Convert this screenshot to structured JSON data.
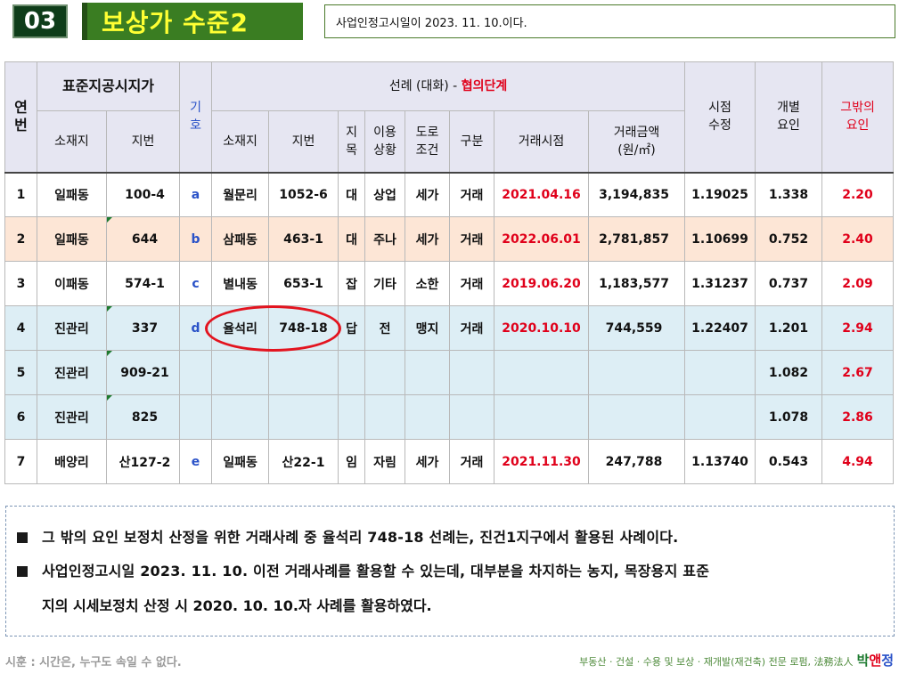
{
  "header": {
    "number": "03",
    "title": "보상가 수준2",
    "note": "사업인정고시일이 2023. 11. 10.이다."
  },
  "table": {
    "headers": {
      "no": "연번",
      "std_group": "표준지공시지가",
      "std_loc": "소재지",
      "std_lot": "지번",
      "symbol": "기호",
      "case_group_prefix": "선례 (대화) - ",
      "case_group_highlight": "협의단계",
      "case_loc": "소재지",
      "case_lot": "지번",
      "case_jimok": "지목",
      "case_use": "이용상황",
      "case_road": "도로조건",
      "case_type": "구분",
      "case_date": "거래시점",
      "case_amount": "거래금액(원/㎡)",
      "time_adj": "시점수정",
      "indiv": "개별요인",
      "other": "그밖의요인"
    },
    "rows": [
      {
        "no": "1",
        "std_loc": "일패동",
        "std_lot": "100-4",
        "symbol": "a",
        "case_loc": "월문리",
        "case_lot": "1052-6",
        "jimok": "대",
        "use": "상업",
        "road": "세가",
        "type": "거래",
        "date": "2021.04.16",
        "amount": "3,194,835",
        "time_adj": "1.19025",
        "indiv": "1.338",
        "other": "2.20"
      },
      {
        "no": "2",
        "std_loc": "일패동",
        "std_lot": "644",
        "symbol": "b",
        "case_loc": "삼패동",
        "case_lot": "463-1",
        "jimok": "대",
        "use": "주나",
        "road": "세가",
        "type": "거래",
        "date": "2022.06.01",
        "amount": "2,781,857",
        "time_adj": "1.10699",
        "indiv": "0.752",
        "other": "2.40"
      },
      {
        "no": "3",
        "std_loc": "이패동",
        "std_lot": "574-1",
        "symbol": "c",
        "case_loc": "별내동",
        "case_lot": "653-1",
        "jimok": "잡",
        "use": "기타",
        "road": "소한",
        "type": "거래",
        "date": "2019.06.20",
        "amount": "1,183,577",
        "time_adj": "1.31237",
        "indiv": "0.737",
        "other": "2.09"
      },
      {
        "no": "4",
        "std_loc": "진관리",
        "std_lot": "337",
        "symbol": "d",
        "case_loc": "율석리",
        "case_lot": "748-18",
        "jimok": "답",
        "use": "전",
        "road": "맹지",
        "type": "거래",
        "date": "2020.10.10",
        "amount": "744,559",
        "time_adj": "1.22407",
        "indiv": "1.201",
        "other": "2.94"
      },
      {
        "no": "5",
        "std_loc": "진관리",
        "std_lot": "909-21",
        "symbol": "",
        "case_loc": "",
        "case_lot": "",
        "jimok": "",
        "use": "",
        "road": "",
        "type": "",
        "date": "",
        "amount": "",
        "time_adj": "",
        "indiv": "1.082",
        "other": "2.67"
      },
      {
        "no": "6",
        "std_loc": "진관리",
        "std_lot": "825",
        "symbol": "",
        "case_loc": "",
        "case_lot": "",
        "jimok": "",
        "use": "",
        "road": "",
        "type": "",
        "date": "",
        "amount": "",
        "time_adj": "",
        "indiv": "1.078",
        "other": "2.86"
      },
      {
        "no": "7",
        "std_loc": "배양리",
        "std_lot": "산127-2",
        "symbol": "e",
        "case_loc": "일패동",
        "case_lot": "산22-1",
        "jimok": "임",
        "use": "자림",
        "road": "세가",
        "type": "거래",
        "date": "2021.11.30",
        "amount": "247,788",
        "time_adj": "1.13740",
        "indiv": "0.543",
        "other": "4.94"
      }
    ]
  },
  "notes": [
    "그 밖의 요인 보정치 산정을 위한 거래사례 중 율석리 748-18 선례는, 진건1지구에서 활용된 사례이다.",
    "사업인정고시일 2023. 11. 10. 이전 거래사례를 활용할 수 있는데, 대부분을 차지하는 농지, 목장용지 표준",
    "지의 시세보정치 산정 시 2020. 10. 10.자 사례를 활용하였다."
  ],
  "footer": {
    "left": "시훈 : 시간은, 누구도 속일 수 없다.",
    "right": "부동산 · 건설 · 수용 및 보상 · 재개발(재건축) 전문 로펌, 法務法人",
    "brand_1": "박",
    "brand_2": "앤",
    "brand_3": "정"
  },
  "colors": {
    "header_dark_green": "#0f3d1a",
    "header_green": "#3a7d22",
    "title_yellow": "#ffff33",
    "row_peach": "#fde6d6",
    "row_light_blue": "#ddeef5",
    "accent_red": "#e0001a",
    "accent_blue": "#2a52c8"
  }
}
